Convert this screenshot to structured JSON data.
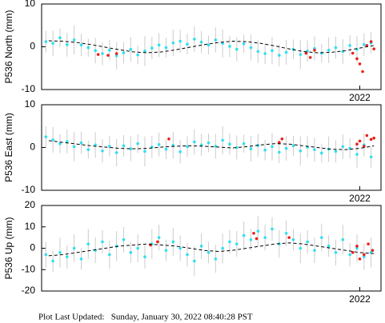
{
  "chart_data": [
    {
      "type": "scatter",
      "ylabel": "P536 North (mm)",
      "xlim": [
        2019.75,
        2022.15
      ],
      "ylim": [
        -10,
        10
      ],
      "xticks": [
        2022
      ],
      "yticks": [
        -10,
        0,
        10
      ],
      "series": [
        {
          "color": "#2ee0f0",
          "x": [
            2019.78,
            2019.83,
            2019.88,
            2019.93,
            2019.98,
            2020.03,
            2020.08,
            2020.13,
            2020.18,
            2020.23,
            2020.28,
            2020.33,
            2020.38,
            2020.43,
            2020.48,
            2020.53,
            2020.58,
            2020.63,
            2020.68,
            2020.73,
            2020.78,
            2020.83,
            2020.88,
            2020.93,
            2020.98,
            2021.03,
            2021.08,
            2021.13,
            2021.18,
            2021.23,
            2021.28,
            2021.33,
            2021.38,
            2021.43,
            2021.48,
            2021.53,
            2021.58,
            2021.63,
            2021.68,
            2021.73,
            2021.78,
            2021.83,
            2021.88,
            2021.93,
            2021.98,
            2022.03,
            2022.08
          ],
          "values": [
            1.2,
            0.8,
            2.1,
            0.5,
            1.6,
            0.4,
            -0.2,
            -0.9,
            -1.6,
            -0.8,
            -2.1,
            -1.4,
            -0.6,
            -1.9,
            -1.0,
            -0.3,
            0.4,
            -0.2,
            0.9,
            1.3,
            0.6,
            1.8,
            1.1,
            0.4,
            1.6,
            0.8,
            0.1,
            -0.6,
            0.7,
            -0.2,
            -1.1,
            -1.6,
            -0.9,
            -2.0,
            -1.3,
            -0.6,
            -1.8,
            -1.0,
            -0.4,
            -1.5,
            -0.8,
            -0.2,
            -1.1,
            0.3,
            -0.6,
            0.5,
            0.9
          ],
          "errors": [
            2.5,
            3,
            2.2,
            2.8,
            3.4,
            2.6,
            2.1,
            3,
            2.7,
            2.4,
            3.2,
            2.5,
            2.9,
            2.2,
            3.5,
            2.6,
            2.8,
            2.3,
            3.1,
            2.7,
            2.4,
            3,
            2.6,
            2.2,
            2.9,
            3.3,
            2.5,
            2.8,
            2.1,
            3,
            2.7,
            2.4,
            3.2,
            2.6,
            2.9,
            2.3,
            3.4,
            2.5,
            2.8,
            2.2,
            3,
            2.6,
            2.9,
            2.4,
            3.1,
            2.7,
            2.5
          ]
        },
        {
          "color": "#e8201a",
          "x": [
            2020.15,
            2020.22,
            2020.28,
            2021.62,
            2021.65,
            2021.68,
            2021.95,
            2021.98,
            2022.0,
            2022.02,
            2022.05,
            2022.08,
            2022.1
          ],
          "values": [
            -1.8,
            -2.0,
            -1.6,
            -1.5,
            -2.5,
            -0.8,
            -1.5,
            -2.8,
            -4.0,
            -5.8,
            0.3,
            1.2,
            -0.5
          ]
        },
        {
          "color": "#000000",
          "style": "dashed",
          "x": [
            2019.8,
            2019.9,
            2020.0,
            2020.1,
            2020.2,
            2020.3,
            2020.4,
            2020.5,
            2020.6,
            2020.7,
            2020.8,
            2020.9,
            2021.0,
            2021.1,
            2021.2,
            2021.3,
            2021.4,
            2021.5,
            2021.6,
            2021.7,
            2021.8,
            2021.9,
            2022.0,
            2022.1
          ],
          "values": [
            1.4,
            1.3,
            1.0,
            0.5,
            -0.1,
            -0.7,
            -1.2,
            -1.4,
            -1.2,
            -0.7,
            -0.1,
            0.5,
            1.0,
            1.3,
            1.2,
            0.8,
            0.2,
            -0.5,
            -1.1,
            -1.4,
            -1.3,
            -0.9,
            -0.3,
            0.3
          ]
        }
      ]
    },
    {
      "type": "scatter",
      "ylabel": "P536 East (mm)",
      "xlim": [
        2019.75,
        2022.15
      ],
      "ylim": [
        -10,
        10
      ],
      "xticks": [
        2022
      ],
      "yticks": [
        -10,
        0,
        10
      ],
      "series": [
        {
          "color": "#2ee0f0",
          "x": [
            2019.78,
            2019.83,
            2019.88,
            2019.93,
            2019.98,
            2020.03,
            2020.08,
            2020.13,
            2020.18,
            2020.23,
            2020.28,
            2020.33,
            2020.38,
            2020.43,
            2020.48,
            2020.53,
            2020.58,
            2020.63,
            2020.68,
            2020.73,
            2020.78,
            2020.83,
            2020.88,
            2020.93,
            2020.98,
            2021.03,
            2021.08,
            2021.13,
            2021.18,
            2021.23,
            2021.28,
            2021.33,
            2021.38,
            2021.43,
            2021.48,
            2021.53,
            2021.58,
            2021.63,
            2021.68,
            2021.73,
            2021.78,
            2021.83,
            2021.88,
            2021.93,
            2021.98,
            2022.03,
            2022.08
          ],
          "values": [
            2.5,
            1.8,
            0.9,
            1.4,
            0.2,
            1.1,
            -0.5,
            0.6,
            -0.8,
            0.3,
            -1.2,
            0.4,
            -0.3,
            0.9,
            -0.9,
            0.1,
            0.7,
            -0.4,
            0.5,
            -1.0,
            0.2,
            1.3,
            0.6,
            1.1,
            0.3,
            1.7,
            0.8,
            0.0,
            0.9,
            -0.3,
            0.5,
            -0.6,
            0.2,
            -1.1,
            -0.2,
            0.4,
            -0.8,
            0.1,
            -0.5,
            -1.3,
            -0.4,
            -0.9,
            0.2,
            -0.2,
            -1.6,
            0.6,
            -2.2
          ],
          "errors": [
            2.5,
            3,
            2.2,
            2.8,
            3.4,
            2.6,
            2.1,
            3,
            2.7,
            2.4,
            3.2,
            2.5,
            2.9,
            2.2,
            3.5,
            2.6,
            2.8,
            2.3,
            3.1,
            2.7,
            2.4,
            3,
            2.6,
            2.2,
            2.9,
            3.3,
            2.5,
            2.8,
            2.1,
            3,
            2.7,
            2.4,
            3.2,
            2.6,
            2.9,
            2.3,
            3.4,
            2.5,
            2.8,
            2.2,
            3,
            2.6,
            2.9,
            2.4,
            3.1,
            2.7,
            2.5
          ]
        },
        {
          "color": "#e8201a",
          "x": [
            2020.65,
            2021.43,
            2021.45,
            2021.98,
            2022.0,
            2022.03,
            2022.05,
            2022.08,
            2022.1
          ],
          "values": [
            2.0,
            1.2,
            2.0,
            0.8,
            1.5,
            0.3,
            2.8,
            1.9,
            2.2
          ]
        },
        {
          "color": "#000000",
          "style": "dashed",
          "x": [
            2019.8,
            2019.9,
            2020.0,
            2020.1,
            2020.2,
            2020.3,
            2020.4,
            2020.5,
            2020.6,
            2020.7,
            2020.8,
            2020.9,
            2021.0,
            2021.1,
            2021.2,
            2021.3,
            2021.4,
            2021.5,
            2021.6,
            2021.7,
            2021.8,
            2021.9,
            2022.0,
            2022.1
          ],
          "values": [
            1.6,
            1.2,
            0.8,
            0.4,
            0.1,
            -0.2,
            -0.3,
            -0.2,
            0.1,
            0.3,
            0.4,
            0.3,
            0.1,
            -0.1,
            0.2,
            0.6,
            0.9,
            0.8,
            0.4,
            0.0,
            -0.4,
            -0.5,
            -0.2,
            0.4
          ]
        }
      ]
    },
    {
      "type": "scatter",
      "ylabel": "P536 Up (mm)",
      "xlim": [
        2019.75,
        2022.15
      ],
      "ylim": [
        -20,
        20
      ],
      "xticks": [
        2022
      ],
      "yticks": [
        -20,
        -10,
        0,
        10,
        20
      ],
      "series": [
        {
          "color": "#2ee0f0",
          "x": [
            2019.78,
            2019.83,
            2019.88,
            2019.93,
            2019.98,
            2020.03,
            2020.08,
            2020.13,
            2020.18,
            2020.23,
            2020.28,
            2020.33,
            2020.38,
            2020.43,
            2020.48,
            2020.53,
            2020.58,
            2020.63,
            2020.68,
            2020.73,
            2020.78,
            2020.83,
            2020.88,
            2020.93,
            2020.98,
            2021.03,
            2021.08,
            2021.13,
            2021.18,
            2021.23,
            2021.28,
            2021.33,
            2021.38,
            2021.43,
            2021.48,
            2021.53,
            2021.58,
            2021.63,
            2021.68,
            2021.73,
            2021.78,
            2021.83,
            2021.88,
            2021.93,
            2021.98,
            2022.03,
            2022.08
          ],
          "values": [
            -3,
            -6,
            -2,
            -4,
            0,
            -5,
            2,
            -1,
            3,
            -3,
            1,
            4,
            -2,
            0,
            -4,
            2,
            5,
            -1,
            3,
            0,
            -3,
            -6,
            1,
            -2,
            -5,
            0,
            3,
            2,
            6,
            4,
            8,
            5,
            9,
            2,
            7,
            4,
            0,
            3,
            -1,
            5,
            1,
            -2,
            4,
            -3,
            0,
            -4,
            -2
          ],
          "errors": [
            6,
            5,
            7,
            5.5,
            6.5,
            5,
            7,
            6,
            5.5,
            6.5,
            7,
            6,
            5,
            6.5,
            5.5,
            7,
            6,
            5,
            6.5,
            6,
            5.5,
            7,
            6,
            5,
            6.5,
            7,
            5.5,
            6,
            6.5,
            5,
            7,
            6,
            5.5,
            6.5,
            6,
            5,
            7,
            5.5,
            6,
            6.5,
            5,
            6,
            7,
            5.5,
            6.5,
            6,
            7
          ]
        },
        {
          "color": "#e8201a",
          "x": [
            2020.52,
            2020.57,
            2021.25,
            2021.27,
            2021.5,
            2021.95,
            2021.98,
            2022.0,
            2022.03,
            2022.06,
            2022.09
          ],
          "values": [
            1.5,
            3,
            7,
            4.5,
            5,
            -2,
            1,
            -5,
            -3,
            2,
            -1
          ]
        },
        {
          "color": "#000000",
          "style": "dashed",
          "x": [
            2019.8,
            2019.9,
            2020.0,
            2020.1,
            2020.2,
            2020.3,
            2020.4,
            2020.5,
            2020.6,
            2020.7,
            2020.8,
            2020.9,
            2021.0,
            2021.1,
            2021.2,
            2021.3,
            2021.4,
            2021.5,
            2021.6,
            2021.7,
            2021.8,
            2021.9,
            2022.0,
            2022.1
          ],
          "values": [
            -3.5,
            -3.0,
            -2.0,
            -1.0,
            0.0,
            1.0,
            1.5,
            2.0,
            1.5,
            1.0,
            0.0,
            -1.0,
            -1.5,
            -1.0,
            0.0,
            1.0,
            2.0,
            2.5,
            2.0,
            1.0,
            0.0,
            -1.0,
            -2.0,
            -2.5
          ]
        }
      ]
    }
  ],
  "footer": "Plot Last Updated:   Sunday, January 30, 2022 08:40:28 PST"
}
